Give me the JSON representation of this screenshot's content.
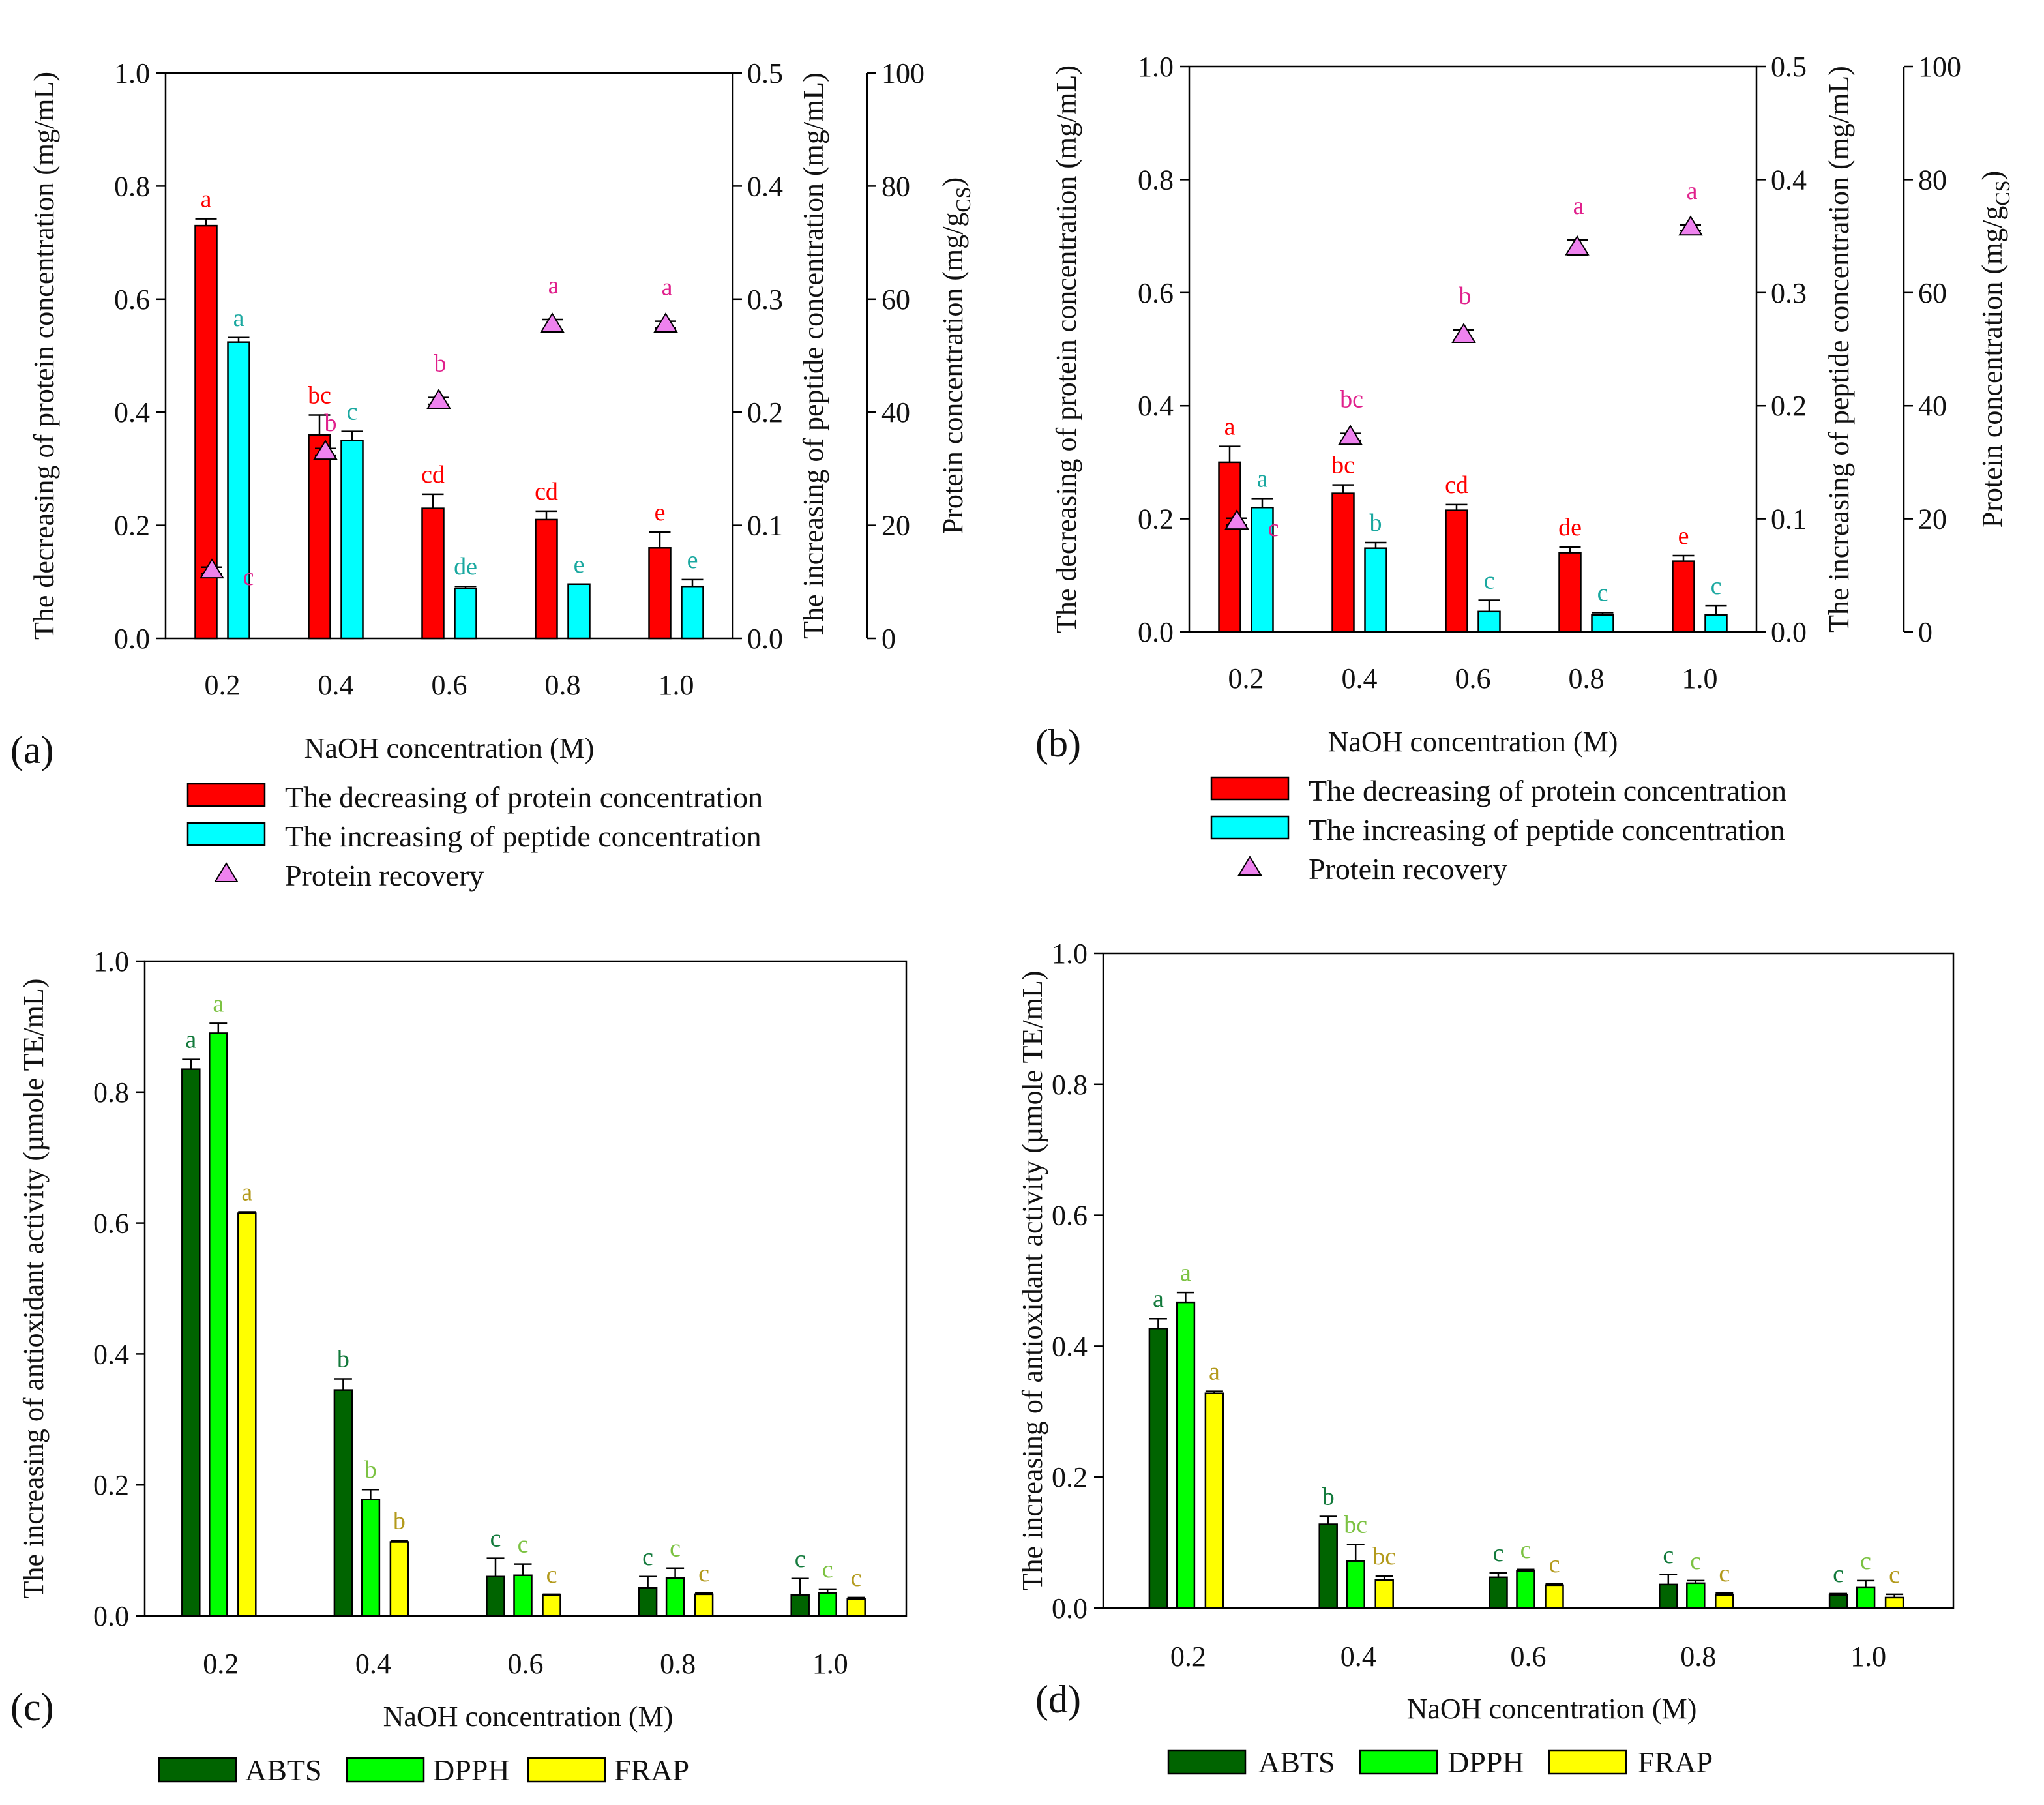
{
  "figure": {
    "xlabel": "NaOH concentration (M)",
    "panel_labels": [
      "(a)",
      "(b)",
      "(c)",
      "(d)"
    ]
  },
  "legends": {
    "ab": [
      {
        "label": "The decreasing of protein concentration",
        "color": "#ff0000"
      },
      {
        "label": "The increasing of peptide concentration",
        "color": "#00ffff"
      },
      {
        "label": "Protein recovery",
        "color": "#ee82ee"
      }
    ],
    "cd": [
      {
        "label": "ABTS",
        "color": "#006400"
      },
      {
        "label": "DPPH",
        "color": "#00ff00"
      },
      {
        "label": "FRAP",
        "color": "#ffff00"
      }
    ]
  },
  "chart_data": [
    {
      "panel": "(a)",
      "type": "bar",
      "xlabel": "NaOH concentration (M)",
      "ylabel": "The decreasing of protein concentration (mg/mL)",
      "y2label": "The increasing of peptide concentration (mg/mL)",
      "y3label": "Protein concentration (mg/gCS)",
      "categories": [
        "0.2",
        "0.4",
        "0.6",
        "0.8",
        "1.0"
      ],
      "ylim": [
        0,
        1
      ],
      "y2lim": [
        0,
        0.5
      ],
      "y3lim": [
        0,
        100
      ],
      "yticks": [
        "0.0",
        "0.2",
        "0.4",
        "0.6",
        "0.8",
        "1.0"
      ],
      "y2ticks": [
        "0.0",
        "0.1",
        "0.2",
        "0.3",
        "0.4",
        "0.5"
      ],
      "y3ticks": [
        "0",
        "20",
        "40",
        "60",
        "80",
        "100"
      ],
      "series": [
        {
          "name": "The decreasing of protein concentration",
          "axis": "y",
          "color": "#ff0000",
          "label_color": "#ff0000",
          "values": [
            0.73,
            0.36,
            0.23,
            0.21,
            0.16
          ],
          "errors": [
            0.012,
            0.035,
            0.025,
            0.015,
            0.028
          ],
          "letters": [
            "a",
            "bc",
            "cd",
            "cd",
            "e"
          ]
        },
        {
          "name": "The increasing of peptide concentration",
          "axis": "y2",
          "color": "#00ffff",
          "label_color": "#1aa8a0",
          "values": [
            0.262,
            0.175,
            0.044,
            0.048,
            0.046
          ],
          "errors": [
            0.004,
            0.008,
            0.002,
            0.0,
            0.006
          ],
          "letters": [
            "a",
            "c",
            "de",
            "e",
            "e"
          ]
        },
        {
          "name": "Protein recovery",
          "axis": "y3",
          "color": "#ee82ee",
          "label_color": "#e0208c",
          "kind": "marker",
          "values": [
            12,
            33,
            42,
            55.5,
            55.5
          ],
          "errors": [
            0.6,
            0.6,
            0.6,
            0.9,
            0.6
          ],
          "letters": [
            "c",
            "b",
            "b",
            "a",
            "a"
          ]
        }
      ]
    },
    {
      "panel": "(b)",
      "type": "bar",
      "xlabel": "NaOH concentration (M)",
      "ylabel": "The decreasing of protein concentration (mg/mL)",
      "y2label": "The increasing of peptide concentration (mg/mL)",
      "y3label": "Protein concentration (mg/gCS)",
      "categories": [
        "0.2",
        "0.4",
        "0.6",
        "0.8",
        "1.0"
      ],
      "ylim": [
        0,
        1
      ],
      "y2lim": [
        0,
        0.5
      ],
      "y3lim": [
        0,
        100
      ],
      "yticks": [
        "0.0",
        "0.2",
        "0.4",
        "0.6",
        "0.8",
        "1.0"
      ],
      "y2ticks": [
        "0.0",
        "0.1",
        "0.2",
        "0.3",
        "0.4",
        "0.5"
      ],
      "y3ticks": [
        "0",
        "20",
        "40",
        "60",
        "80",
        "100"
      ],
      "series": [
        {
          "name": "The decreasing of protein concentration",
          "axis": "y",
          "color": "#ff0000",
          "label_color": "#ff0000",
          "values": [
            0.3,
            0.245,
            0.215,
            0.14,
            0.125
          ],
          "errors": [
            0.028,
            0.015,
            0.01,
            0.01,
            0.01
          ],
          "letters": [
            "a",
            "bc",
            "cd",
            "de",
            "e"
          ]
        },
        {
          "name": "The increasing of peptide concentration",
          "axis": "y2",
          "color": "#00ffff",
          "label_color": "#1aa8a0",
          "values": [
            0.11,
            0.074,
            0.018,
            0.015,
            0.015
          ],
          "errors": [
            0.008,
            0.005,
            0.01,
            0.002,
            0.008
          ],
          "letters": [
            "a",
            "b",
            "c",
            "c",
            "c"
          ]
        },
        {
          "name": "Protein recovery",
          "axis": "y3",
          "color": "#ee82ee",
          "label_color": "#e0208c",
          "kind": "marker",
          "values": [
            19.5,
            34.5,
            52.5,
            68,
            71.5
          ],
          "errors": [
            0.6,
            0.6,
            0.9,
            1.3,
            0.5
          ],
          "letters": [
            "c",
            "bc",
            "b",
            "a",
            "a"
          ]
        }
      ]
    },
    {
      "panel": "(c)",
      "type": "bar",
      "xlabel": "NaOH concentration (M)",
      "ylabel": "The increasing of antioxidant activity (µmole TE/mL)",
      "categories": [
        "0.2",
        "0.4",
        "0.6",
        "0.8",
        "1.0"
      ],
      "ylim": [
        0,
        1
      ],
      "yticks": [
        "0.0",
        "0.2",
        "0.4",
        "0.6",
        "0.8",
        "1.0"
      ],
      "series": [
        {
          "name": "ABTS",
          "color": "#006400",
          "label_color": "#137a3c",
          "values": [
            0.835,
            0.345,
            0.06,
            0.043,
            0.032
          ],
          "errors": [
            0.015,
            0.017,
            0.028,
            0.017,
            0.025
          ],
          "letters": [
            "a",
            "b",
            "c",
            "c",
            "c"
          ]
        },
        {
          "name": "DPPH",
          "color": "#00ff00",
          "label_color": "#7cc242",
          "values": [
            0.89,
            0.178,
            0.062,
            0.058,
            0.035
          ],
          "errors": [
            0.015,
            0.015,
            0.017,
            0.015,
            0.006
          ],
          "letters": [
            "a",
            "b",
            "c",
            "c",
            "c"
          ]
        },
        {
          "name": "FRAP",
          "color": "#ffff00",
          "label_color": "#b39a1c",
          "values": [
            0.615,
            0.113,
            0.032,
            0.033,
            0.026
          ],
          "errors": [
            0.002,
            0.002,
            0.001,
            0.002,
            0.002
          ],
          "letters": [
            "a",
            "b",
            "c",
            "c",
            "c"
          ]
        }
      ]
    },
    {
      "panel": "(d)",
      "type": "bar",
      "xlabel": "NaOH concentration (M)",
      "ylabel": "The increasing of antioxidant activity (µmole TE/mL)",
      "categories": [
        "0.2",
        "0.4",
        "0.6",
        "0.8",
        "1.0"
      ],
      "ylim": [
        0,
        1
      ],
      "yticks": [
        "0.0",
        "0.2",
        "0.4",
        "0.6",
        "0.8",
        "1.0"
      ],
      "series": [
        {
          "name": "ABTS",
          "color": "#006400",
          "label_color": "#137a3c",
          "values": [
            0.427,
            0.128,
            0.047,
            0.036,
            0.02
          ],
          "errors": [
            0.015,
            0.012,
            0.007,
            0.015,
            0.002
          ],
          "letters": [
            "a",
            "b",
            "c",
            "c",
            "c"
          ]
        },
        {
          "name": "DPPH",
          "color": "#00ff00",
          "label_color": "#7cc242",
          "values": [
            0.467,
            0.072,
            0.057,
            0.038,
            0.032
          ],
          "errors": [
            0.015,
            0.025,
            0.002,
            0.004,
            0.01
          ],
          "letters": [
            "a",
            "bc",
            "c",
            "c",
            "c"
          ]
        },
        {
          "name": "FRAP",
          "color": "#ffff00",
          "label_color": "#b39a1c",
          "values": [
            0.328,
            0.043,
            0.035,
            0.02,
            0.016
          ],
          "errors": [
            0.003,
            0.006,
            0.002,
            0.003,
            0.005
          ],
          "letters": [
            "a",
            "bc",
            "c",
            "c",
            "c"
          ]
        }
      ]
    }
  ]
}
